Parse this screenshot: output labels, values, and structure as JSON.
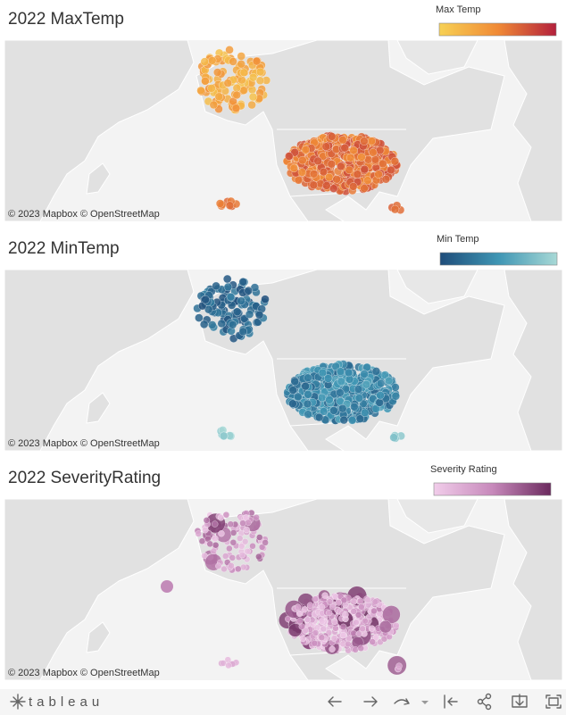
{
  "panels": [
    {
      "title": "2022 MaxTemp",
      "legend": {
        "title": "Max Temp",
        "min": "50.00",
        "max": "132.80",
        "colors": [
          "#f7d154",
          "#f08a36",
          "#b3203c"
        ]
      },
      "attribution": "© 2023 Mapbox © OpenStreetMap"
    },
    {
      "title": "2022 MinTemp",
      "legend": {
        "title": "Min Temp",
        "min": "-59.1",
        "max": "70.0",
        "colors": [
          "#1f4d7a",
          "#3f96b4",
          "#a8d9d6"
        ]
      },
      "attribution": "© 2023 Mapbox © OpenStreetMap"
    },
    {
      "title": "2022 SeverityRating",
      "legend": {
        "title": "Severity Rating",
        "min": "0.00",
        "max": "34.00",
        "colors": [
          "#f1cdea",
          "#c789bb",
          "#6b2a5e"
        ]
      },
      "attribution": "© 2023 Mapbox © OpenStreetMap"
    }
  ],
  "toolbar": {
    "logo": "tableau"
  }
}
